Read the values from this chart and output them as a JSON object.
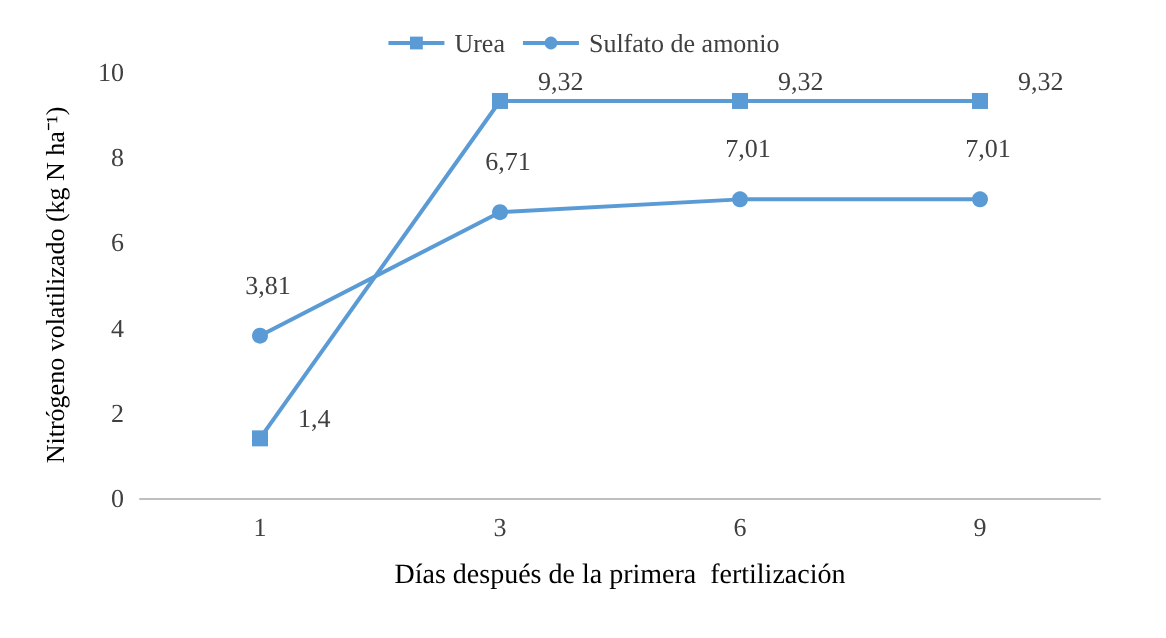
{
  "chart_data": {
    "type": "line",
    "xlabel": "Días después de la primera  fertilización",
    "ylabel": "Nitrógeno volatilizado (kg N ha⁻¹)",
    "categories": [
      "1",
      "3",
      "6",
      "9"
    ],
    "ylim": [
      0,
      10
    ],
    "yticks": [
      0,
      2,
      4,
      6,
      8,
      10
    ],
    "grid": false,
    "legend": "top",
    "series": [
      {
        "name": "Urea",
        "color": "#5b9bd5",
        "marker": "square",
        "values": [
          1.4,
          9.32,
          9.32,
          9.32
        ],
        "value_labels": [
          "1,4",
          "9,32",
          "9,32",
          "9,32"
        ]
      },
      {
        "name": "Sulfato de amonio",
        "color": "#5b9bd5",
        "marker": "circle",
        "values": [
          3.81,
          6.71,
          7.01,
          7.01
        ],
        "value_labels": [
          "3,81",
          "6,71",
          "7,01",
          "7,01"
        ]
      }
    ]
  }
}
